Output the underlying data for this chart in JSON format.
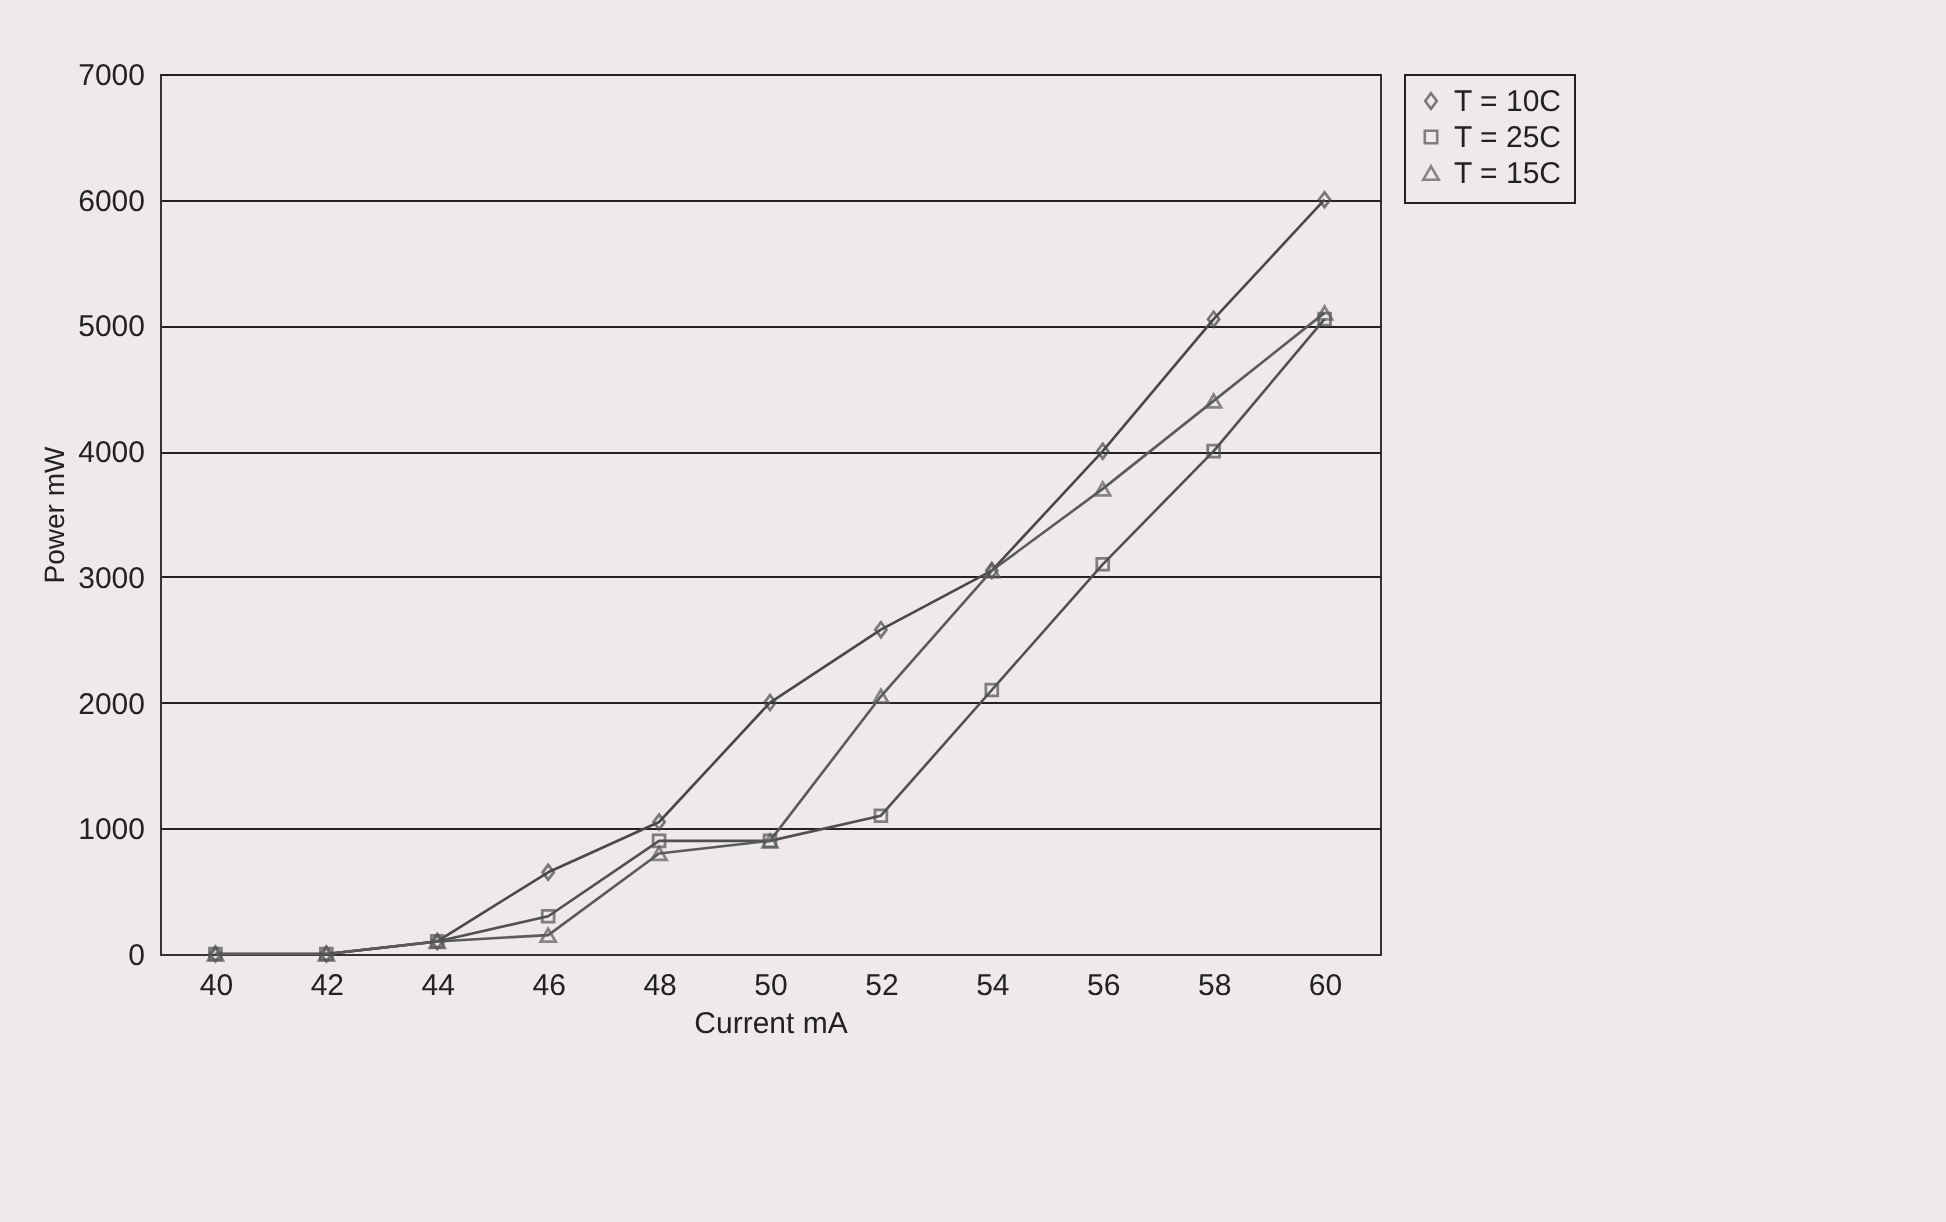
{
  "chart_data": {
    "type": "line",
    "xlabel": "Current mA",
    "ylabel": "Power mW",
    "categories": [
      "40",
      "42",
      "44",
      "46",
      "48",
      "50",
      "52",
      "54",
      "56",
      "58",
      "60"
    ],
    "series": [
      {
        "name": "T = 10C",
        "color": "#484848",
        "marker": "diamond",
        "values": [
          0,
          0,
          100,
          650,
          1050,
          2000,
          2580,
          3050,
          4000,
          5050,
          6000
        ]
      },
      {
        "name": "T = 25C",
        "color": "#505050",
        "marker": "square",
        "values": [
          0,
          0,
          100,
          300,
          900,
          900,
          1100,
          2100,
          3100,
          4000,
          5050
        ]
      },
      {
        "name": "T = 15C",
        "color": "#5a5a5a",
        "marker": "triangle",
        "values": [
          0,
          0,
          100,
          150,
          800,
          900,
          2050,
          3050,
          3700,
          4400,
          5100
        ]
      }
    ],
    "ylim": [
      0,
      7000
    ],
    "yticks": [
      0,
      1000,
      2000,
      3000,
      4000,
      5000,
      6000,
      7000
    ],
    "grid": "y",
    "legend": "right",
    "line_style": "solid"
  }
}
